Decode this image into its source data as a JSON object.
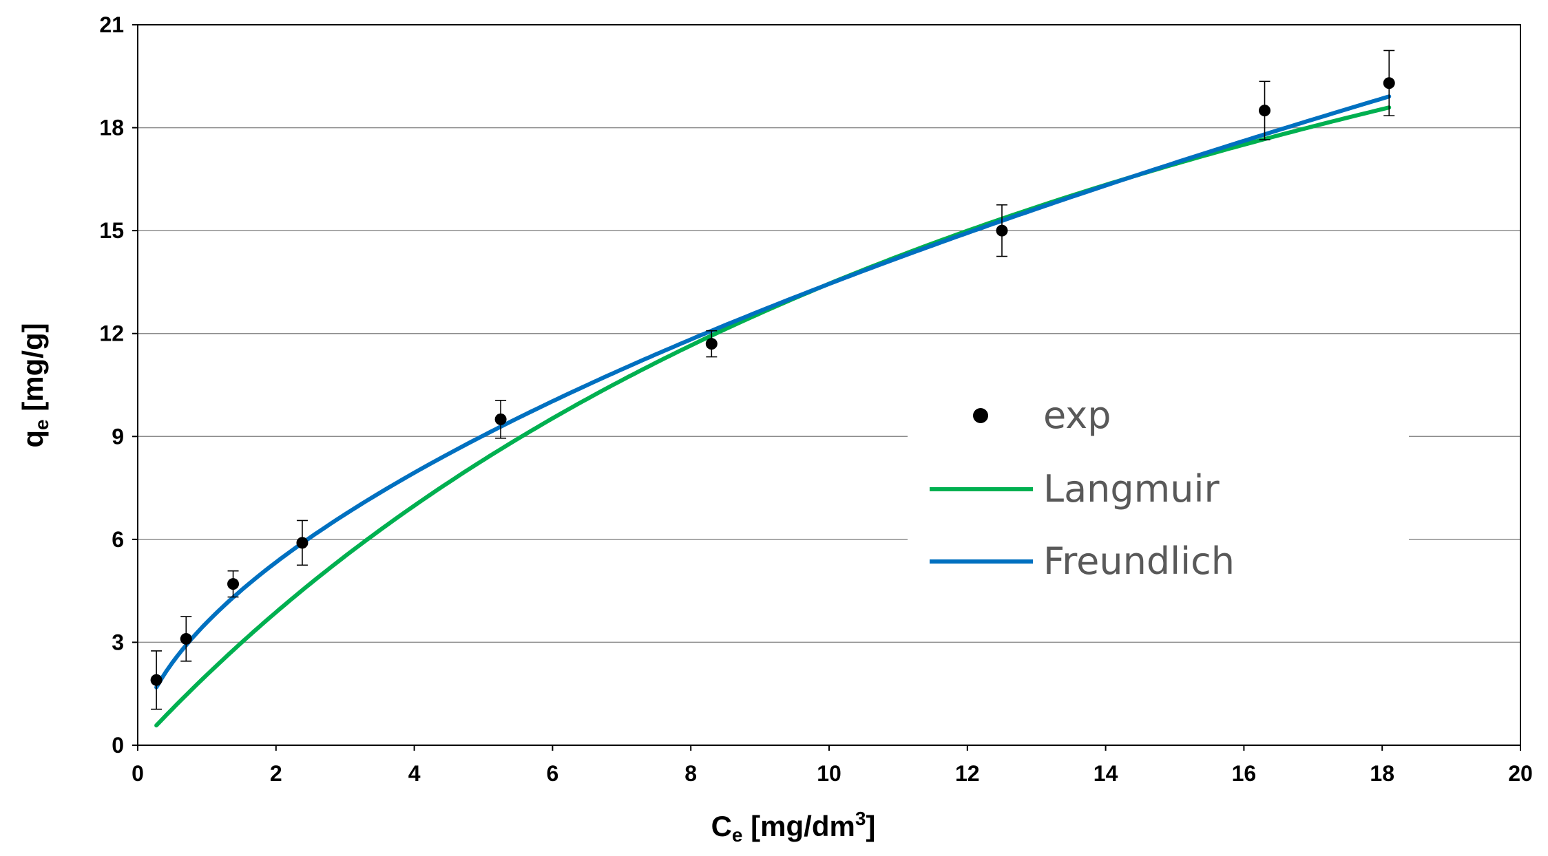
{
  "chart_data": {
    "type": "scatter",
    "title": "",
    "xlabel": {
      "main": "C",
      "sub": "e",
      "rest": " [mg/dm",
      "sup": "3",
      "end": "]"
    },
    "ylabel": {
      "main": "q",
      "sub": "e",
      "rest": " [mg/g]"
    },
    "xlim": [
      0,
      20
    ],
    "ylim": [
      0,
      21
    ],
    "xticks": [
      0,
      2,
      4,
      6,
      8,
      10,
      12,
      14,
      16,
      18,
      20
    ],
    "yticks": [
      0,
      3,
      6,
      9,
      12,
      15,
      18,
      21
    ],
    "grid": "horizontal",
    "legend_position": "center-right",
    "experimental": {
      "name": "exp",
      "color": "#000000",
      "points": [
        {
          "x": 0.27,
          "y": 1.9,
          "err": 0.85
        },
        {
          "x": 0.7,
          "y": 3.1,
          "err": 0.65
        },
        {
          "x": 1.38,
          "y": 4.7,
          "err": 0.38
        },
        {
          "x": 2.38,
          "y": 5.9,
          "err": 0.65
        },
        {
          "x": 5.25,
          "y": 9.5,
          "err": 0.55
        },
        {
          "x": 8.3,
          "y": 11.7,
          "err": 0.38
        },
        {
          "x": 12.5,
          "y": 15.0,
          "err": 0.75
        },
        {
          "x": 16.3,
          "y": 18.5,
          "err": 0.85
        },
        {
          "x": 18.1,
          "y": 19.3,
          "err": 0.95
        }
      ]
    },
    "series": [
      {
        "name": "Langmuir",
        "color": "#00b050",
        "model": "langmuir",
        "qmax": 35.18,
        "KL": 0.0619,
        "xmin": 0.27,
        "xmax": 18.1
      },
      {
        "name": "Freundlich",
        "color": "#0070c0",
        "model": "freundlich",
        "KF": 3.58,
        "n": 1.74,
        "xmin": 0.27,
        "xmax": 18.1
      }
    ]
  }
}
